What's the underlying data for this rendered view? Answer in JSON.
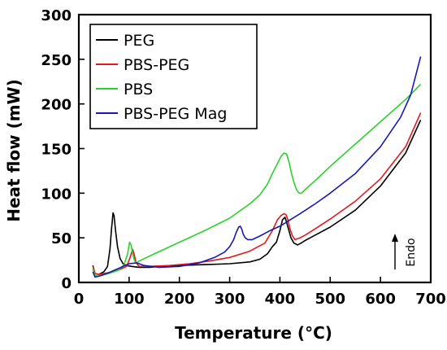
{
  "chart_data": {
    "type": "line",
    "xlabel": "Temperature (°C)",
    "ylabel": "Heat flow (mW)",
    "xlim": [
      0,
      700
    ],
    "ylim": [
      0,
      300
    ],
    "x_ticks": [
      0,
      100,
      200,
      300,
      400,
      500,
      600,
      700
    ],
    "y_ticks": [
      0,
      50,
      100,
      150,
      200,
      250,
      300
    ],
    "grid": false,
    "legend_position": "top-left",
    "annotation": {
      "text": "Endo",
      "direction": "up",
      "near": [
        640,
        25
      ]
    },
    "series": [
      {
        "name": "PEG",
        "color": "#000000",
        "x": [
          28,
          32,
          40,
          50,
          57,
          62,
          65,
          68,
          70,
          73,
          77,
          82,
          88,
          95,
          105,
          120,
          140,
          160,
          200,
          250,
          300,
          340,
          360,
          375,
          385,
          393,
          400,
          405,
          410,
          413,
          417,
          422,
          428,
          435,
          442,
          450,
          470,
          500,
          550,
          600,
          650,
          680
        ],
        "y": [
          19,
          10,
          9,
          12,
          18,
          38,
          60,
          78,
          75,
          58,
          40,
          27,
          21,
          19,
          18,
          17,
          17,
          18,
          19,
          20,
          21,
          23,
          26,
          32,
          40,
          45,
          58,
          70,
          73,
          68,
          60,
          50,
          44,
          42,
          44,
          47,
          53,
          62,
          81,
          108,
          145,
          182
        ]
      },
      {
        "name": "PBS-PEG",
        "color": "#e31a1c",
        "x": [
          28,
          32,
          40,
          60,
          80,
          95,
          102,
          107,
          110,
          114,
          120,
          140,
          180,
          220,
          260,
          300,
          340,
          370,
          385,
          395,
          402,
          408,
          412,
          416,
          420,
          425,
          430,
          440,
          450,
          470,
          500,
          550,
          600,
          650,
          680
        ],
        "y": [
          18,
          10,
          9,
          11,
          14,
          18,
          28,
          37,
          32,
          22,
          18,
          18,
          19,
          21,
          24,
          28,
          35,
          44,
          58,
          70,
          75,
          77,
          76,
          70,
          60,
          52,
          48,
          50,
          53,
          60,
          71,
          91,
          116,
          152,
          190
        ]
      },
      {
        "name": "PBS",
        "color": "#2cd12c",
        "x": [
          28,
          32,
          40,
          60,
          80,
          90,
          97,
          101,
          104,
          107,
          111,
          115,
          120,
          150,
          200,
          250,
          300,
          340,
          360,
          375,
          385,
          395,
          402,
          408,
          413,
          418,
          423,
          428,
          433,
          438,
          443,
          450,
          470,
          500,
          550,
          600,
          650,
          680
        ],
        "y": [
          15,
          8,
          7,
          10,
          14,
          20,
          32,
          45,
          42,
          32,
          24,
          22,
          24,
          32,
          45,
          58,
          72,
          88,
          98,
          110,
          122,
          133,
          141,
          145,
          144,
          135,
          122,
          112,
          104,
          100,
          100,
          104,
          114,
          130,
          155,
          180,
          205,
          222
        ]
      },
      {
        "name": "PBS-PEG Mag",
        "color": "#1818b5",
        "x": [
          28,
          32,
          40,
          60,
          80,
          100,
          115,
          130,
          160,
          200,
          240,
          270,
          290,
          300,
          308,
          313,
          318,
          321,
          324,
          327,
          331,
          336,
          345,
          360,
          380,
          400,
          420,
          440,
          470,
          500,
          550,
          600,
          640,
          660,
          680
        ],
        "y": [
          12,
          6,
          7,
          11,
          16,
          21,
          22,
          19,
          17,
          18,
          22,
          28,
          34,
          40,
          48,
          56,
          62,
          63,
          60,
          54,
          50,
          48,
          48,
          52,
          58,
          63,
          70,
          77,
          88,
          100,
          122,
          152,
          185,
          210,
          253
        ]
      }
    ]
  }
}
